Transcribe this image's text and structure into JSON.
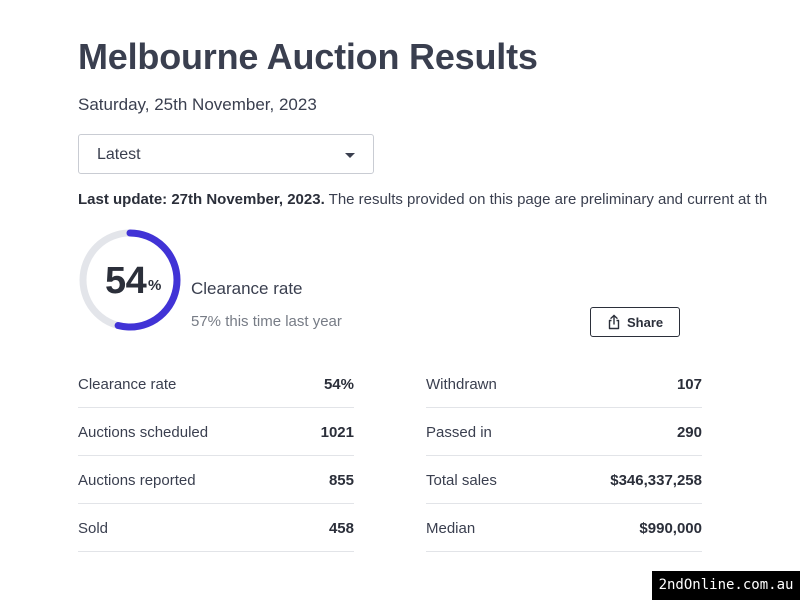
{
  "header": {
    "title": "Melbourne Auction Results",
    "date": "Saturday, 25th November, 2023"
  },
  "selector": {
    "selected": "Latest"
  },
  "update": {
    "label": "Last update: 27th November, 2023.",
    "text": " The results provided on this page are preliminary and current at th"
  },
  "clearance": {
    "value": "54",
    "percent_sign": "%",
    "fraction": 0.54,
    "label": "Clearance rate",
    "last_year": "57% this time last year",
    "ring_color": "#4133d6",
    "track_color": "#e3e5ea"
  },
  "share": {
    "label": "Share"
  },
  "stats_left": [
    {
      "label": "Clearance rate",
      "value": "54%"
    },
    {
      "label": "Auctions scheduled",
      "value": "1021"
    },
    {
      "label": "Auctions reported",
      "value": "855"
    },
    {
      "label": "Sold",
      "value": "458"
    }
  ],
  "stats_right": [
    {
      "label": "Withdrawn",
      "value": "107"
    },
    {
      "label": "Passed in",
      "value": "290"
    },
    {
      "label": "Total sales",
      "value": "$346,337,258"
    },
    {
      "label": "Median",
      "value": "$990,000"
    }
  ],
  "watermark": "2ndOnline.com.au"
}
